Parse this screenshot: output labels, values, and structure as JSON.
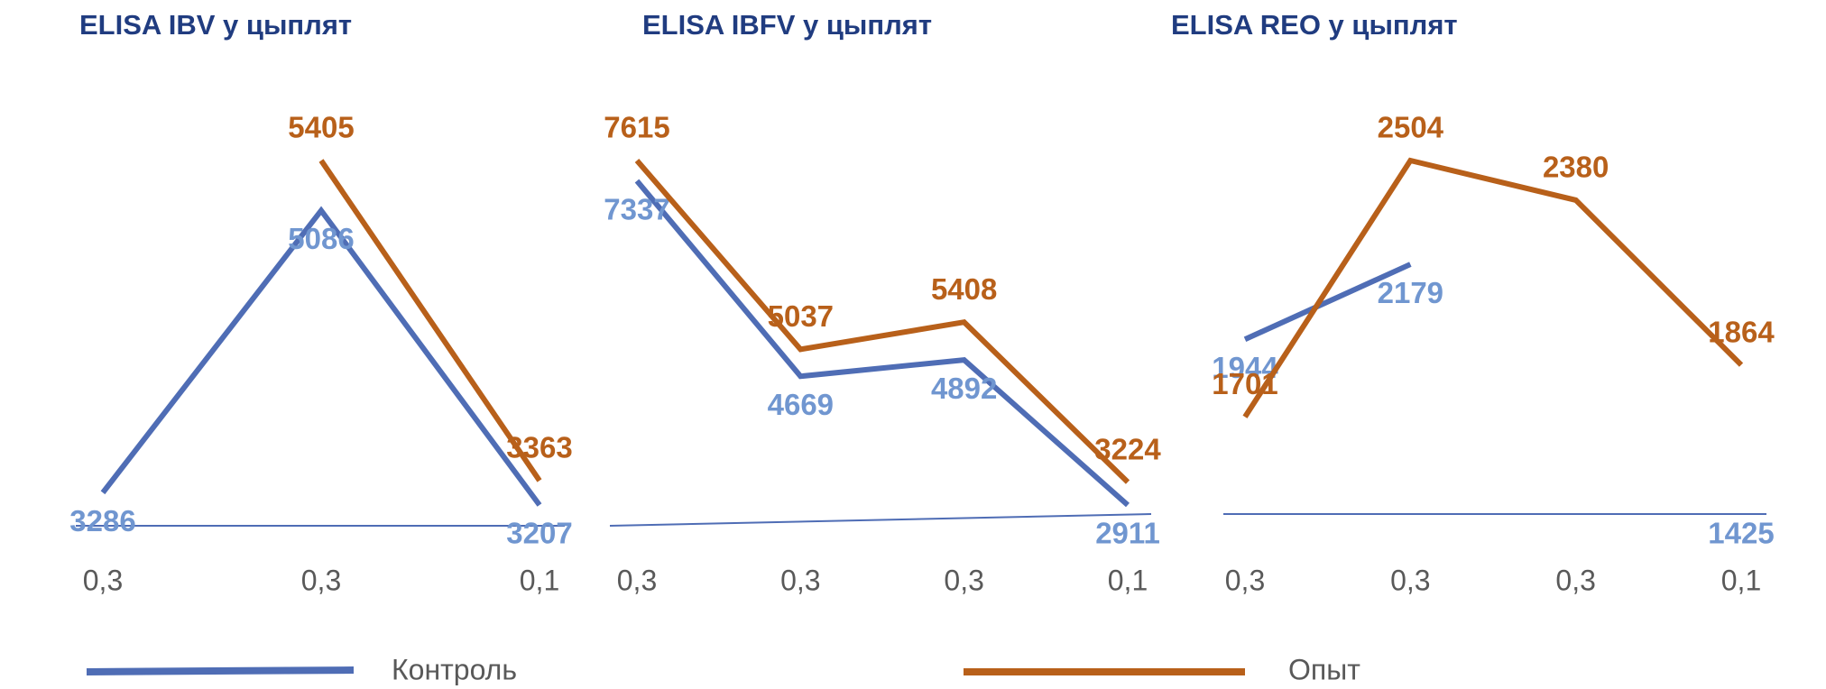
{
  "chart_data": [
    {
      "type": "line",
      "title": "ELISA IBV у цыплят",
      "categories": [
        "0,3",
        "0,3",
        "0,1"
      ],
      "series": [
        {
          "name": "Контроль",
          "color": "#4f6db5",
          "label_color": "#7096d0",
          "values": [
            3286,
            5086,
            3207
          ]
        },
        {
          "name": "Опыт",
          "color": "#b8601a",
          "label_color": "#b8601a",
          "values": [
            null,
            5405,
            3363
          ]
        }
      ]
    },
    {
      "type": "line",
      "title": "ELISA IBFV у цыплят",
      "categories": [
        "0,3",
        "0,3",
        "0,3",
        "0,1"
      ],
      "series": [
        {
          "name": "Контроль",
          "color": "#4f6db5",
          "label_color": "#7096d0",
          "values": [
            7337,
            4669,
            4892,
            2911
          ]
        },
        {
          "name": "Опыт",
          "color": "#b8601a",
          "label_color": "#b8601a",
          "values": [
            7615,
            5037,
            5408,
            3224
          ]
        }
      ]
    },
    {
      "type": "line",
      "title": "ELISA REO   у цыплят",
      "categories": [
        "0,3",
        "0,3",
        "0,3",
        "0,1"
      ],
      "series": [
        {
          "name": "Контроль",
          "color": "#4f6db5",
          "label_color": "#7096d0",
          "values": [
            1944,
            2179,
            null,
            1425
          ]
        },
        {
          "name": "Опыт",
          "color": "#b8601a",
          "label_color": "#b8601a",
          "values": [
            1701,
            2504,
            2380,
            1864
          ]
        }
      ]
    }
  ]
}
